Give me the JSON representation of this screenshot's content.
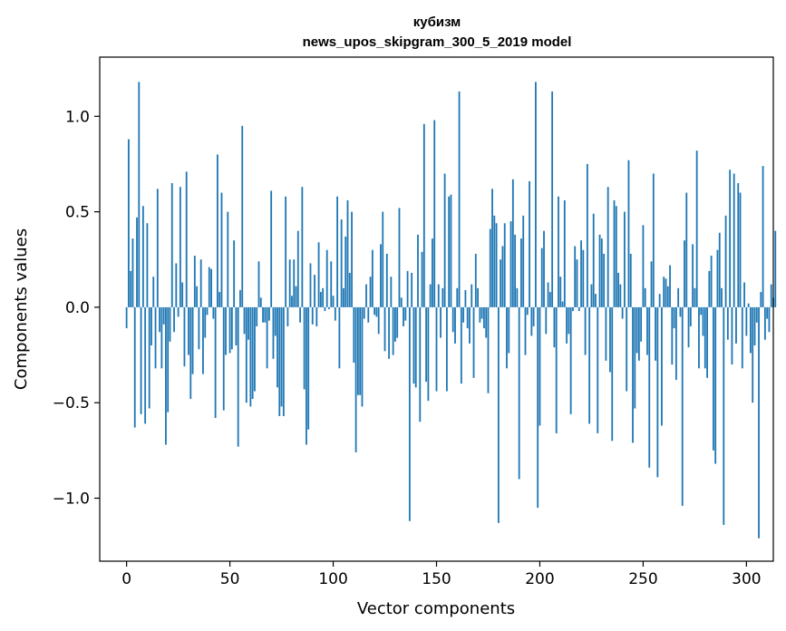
{
  "chart_data": {
    "type": "bar",
    "title": "кубизм",
    "subtitle": "news_upos_skipgram_300_5_2019 model",
    "xlabel": "Vector components",
    "ylabel": "Components values",
    "xlim": [
      -13,
      313
    ],
    "ylim": [
      -1.33,
      1.31
    ],
    "xticks": [
      0,
      50,
      100,
      150,
      200,
      250,
      300
    ],
    "xtick_labels": [
      "0",
      "50",
      "100",
      "150",
      "200",
      "250",
      "300"
    ],
    "yticks": [
      -1.0,
      -0.5,
      0.0,
      0.5,
      1.0
    ],
    "ytick_labels": [
      "−1.0",
      "−0.5",
      "0.0",
      "0.5",
      "1.0"
    ],
    "grid": false,
    "bar_color": "#1f77b4",
    "values": [
      -0.11,
      0.88,
      0.19,
      0.36,
      -0.63,
      0.47,
      1.18,
      -0.56,
      0.53,
      -0.61,
      0.44,
      -0.53,
      -0.2,
      0.16,
      -0.32,
      0.62,
      -0.13,
      -0.32,
      -0.09,
      -0.72,
      -0.55,
      -0.18,
      0.65,
      -0.13,
      0.23,
      -0.05,
      0.63,
      0.13,
      -0.31,
      0.71,
      -0.25,
      -0.48,
      -0.35,
      0.27,
      0.11,
      -0.22,
      0.25,
      -0.35,
      -0.16,
      -0.04,
      0.21,
      0.2,
      -0.06,
      -0.58,
      0.8,
      0.08,
      0.6,
      -0.54,
      -0.25,
      0.5,
      -0.24,
      -0.22,
      0.35,
      -0.2,
      -0.73,
      0.09,
      0.95,
      -0.14,
      -0.5,
      -0.17,
      -0.52,
      -0.48,
      -0.44,
      -0.1,
      0.24,
      0.05,
      -0.08,
      -0.08,
      -0.32,
      -0.07,
      0.61,
      -0.27,
      -0.15,
      -0.42,
      -0.57,
      -0.52,
      -0.57,
      0.58,
      -0.1,
      0.25,
      0.06,
      0.25,
      0.11,
      0.4,
      -0.08,
      0.63,
      -0.43,
      -0.72,
      -0.64,
      0.23,
      -0.09,
      0.17,
      -0.1,
      0.34,
      0.08,
      0.1,
      -0.02,
      0.3,
      -0.01,
      0.24,
      0.06,
      -0.07,
      0.58,
      -0.32,
      0.46,
      0.1,
      0.37,
      0.56,
      0.18,
      0.5,
      -0.29,
      -0.76,
      -0.46,
      -0.46,
      -0.52,
      -0.06,
      0.12,
      -0.08,
      0.16,
      0.3,
      -0.04,
      -0.05,
      -0.14,
      0.33,
      0.5,
      -0.23,
      0.28,
      -0.27,
      0.16,
      -0.25,
      -0.18,
      -0.16,
      0.52,
      0.05,
      -0.1,
      -0.07,
      0.19,
      -1.12,
      0.18,
      -0.4,
      -0.42,
      0.38,
      -0.6,
      0.29,
      0.96,
      -0.39,
      -0.49,
      0.12,
      0.36,
      0.98,
      -0.44,
      0.12,
      -0.16,
      0.1,
      0.7,
      -0.44,
      0.58,
      0.59,
      -0.13,
      -0.19,
      0.1,
      1.13,
      -0.4,
      -0.08,
      0.09,
      -0.11,
      -0.19,
      0.12,
      -0.37,
      0.28,
      0.1,
      -0.08,
      -0.06,
      -0.11,
      -0.16,
      -0.45,
      0.41,
      0.62,
      0.48,
      0.44,
      -1.13,
      0.25,
      0.32,
      0.44,
      -0.32,
      -0.24,
      0.45,
      0.67,
      0.38,
      0.1,
      -0.9,
      0.36,
      0.48,
      -0.25,
      -0.04,
      0.66,
      -0.15,
      -0.1,
      1.18,
      -1.05,
      -0.62,
      0.31,
      0.4,
      -0.14,
      0.13,
      0.08,
      1.13,
      -0.21,
      -0.66,
      0.58,
      0.16,
      0.03,
      0.56,
      -0.19,
      -0.14,
      -0.56,
      -0.02,
      0.32,
      0.25,
      -0.02,
      0.35,
      0.3,
      -0.25,
      0.75,
      -0.61,
      0.12,
      0.49,
      0.07,
      -0.66,
      0.38,
      0.36,
      0.28,
      -0.28,
      0.63,
      -0.34,
      -0.7,
      0.56,
      0.53,
      0.18,
      0.12,
      -0.06,
      0.5,
      -0.44,
      0.77,
      0.28,
      -0.71,
      -0.53,
      -0.24,
      -0.28,
      -0.18,
      0.43,
      0.1,
      -0.25,
      -0.84,
      0.24,
      0.7,
      -0.28,
      -0.89,
      0.07,
      -0.62,
      0.16,
      0.15,
      0.11,
      0.22,
      -0.3,
      -0.11,
      -0.38,
      0.1,
      -0.05,
      -1.04,
      0.35,
      0.6,
      -0.21,
      -0.1,
      0.33,
      0.1,
      0.82,
      -0.32,
      -0.04,
      -0.15,
      -0.32,
      -0.37,
      0.19,
      0.27,
      -0.75,
      -0.82,
      0.3,
      0.39,
      0.1,
      -1.14,
      0.48,
      -0.17,
      0.72,
      -0.3,
      0.7,
      -0.19,
      0.65,
      0.6,
      -0.32,
      0.13,
      -0.15,
      0.02,
      -0.24,
      -0.5,
      -0.2,
      -0.08,
      -1.21,
      0.08,
      0.74,
      -0.17,
      -0.06,
      -0.13,
      0.12,
      0.05,
      0.4
    ]
  }
}
